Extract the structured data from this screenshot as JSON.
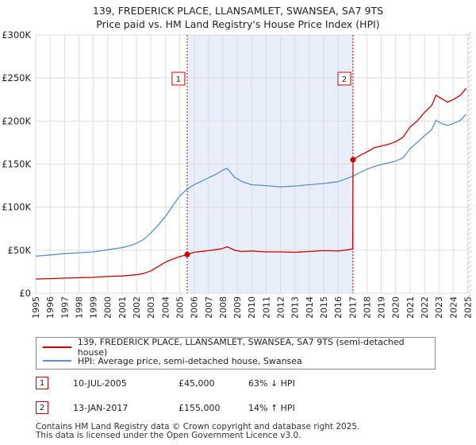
{
  "chart_data": {
    "type": "line",
    "title": "139, FREDERICK PLACE, LLANSAMLET, SWANSEA, SA7 9TS",
    "subtitle": "Price paid vs. HM Land Registry's House Price Index (HPI)",
    "xlim": [
      1995,
      2025.25
    ],
    "ylim": [
      0,
      300000
    ],
    "y_ticks": [
      0,
      50000,
      100000,
      150000,
      200000,
      250000,
      300000
    ],
    "y_tick_labels": [
      "£0",
      "£50K",
      "£100K",
      "£150K",
      "£200K",
      "£250K",
      "£300K"
    ],
    "x_ticks": [
      1995,
      1996,
      1997,
      1998,
      1999,
      2000,
      2001,
      2002,
      2003,
      2004,
      2005,
      2006,
      2007,
      2008,
      2009,
      2010,
      2011,
      2012,
      2013,
      2014,
      2015,
      2016,
      2017,
      2018,
      2019,
      2020,
      2021,
      2022,
      2023,
      2024,
      2025
    ],
    "shaded_span": [
      2005.52,
      2017.04
    ],
    "series": [
      {
        "name": "139, FREDERICK PLACE, LLANSAMLET, SWANSEA, SA7 9TS (semi-detached house)",
        "color": "#cc0000",
        "x": [
          1995.0,
          1996.0,
          1997.0,
          1998.0,
          1999.0,
          2000.0,
          2001.0,
          2002.0,
          2002.5,
          2003.0,
          2003.5,
          2004.0,
          2004.5,
          2005.0,
          2005.52,
          2006.0,
          2007.0,
          2007.9,
          2008.3,
          2008.8,
          2009.3,
          2010.0,
          2011.0,
          2012.0,
          2013.0,
          2014.0,
          2015.0,
          2016.0,
          2016.7,
          2017.02,
          2017.04,
          2017.5,
          2018.0,
          2018.5,
          2019.0,
          2019.5,
          2020.0,
          2020.5,
          2021.0,
          2021.5,
          2022.0,
          2022.5,
          2022.8,
          2023.2,
          2023.6,
          2024.0,
          2024.5,
          2024.9
        ],
        "y": [
          16500,
          17000,
          17500,
          18000,
          18500,
          19500,
          20000,
          21500,
          23000,
          26000,
          31000,
          36000,
          39500,
          42500,
          45000,
          47500,
          49500,
          51500,
          54000,
          50000,
          48500,
          49000,
          48000,
          48000,
          47500,
          48500,
          49500,
          49000,
          50500,
          51500,
          155000,
          160000,
          164000,
          169000,
          171000,
          173000,
          176000,
          181000,
          193000,
          200000,
          210000,
          218000,
          230000,
          226000,
          222000,
          225000,
          230000,
          238000
        ]
      },
      {
        "name": "HPI: Average price, semi-detached house, Swansea",
        "color": "#5a8fd0",
        "x": [
          1995.0,
          1996.0,
          1997.0,
          1998.0,
          1999.0,
          2000.0,
          2001.0,
          2001.5,
          2002.0,
          2002.5,
          2003.0,
          2003.5,
          2004.0,
          2004.5,
          2005.0,
          2005.52,
          2006.0,
          2006.5,
          2007.0,
          2007.5,
          2008.0,
          2008.3,
          2008.8,
          2009.3,
          2010.0,
          2011.0,
          2012.0,
          2013.0,
          2014.0,
          2015.0,
          2016.0,
          2017.04,
          2017.5,
          2018.0,
          2018.5,
          2019.0,
          2019.5,
          2020.0,
          2020.5,
          2021.0,
          2021.5,
          2022.0,
          2022.5,
          2022.8,
          2023.2,
          2023.6,
          2024.0,
          2024.5,
          2024.9
        ],
        "y": [
          43000,
          44500,
          46000,
          47000,
          48000,
          50500,
          53000,
          55000,
          58000,
          62500,
          70000,
          79000,
          89000,
          101000,
          113000,
          121000,
          126000,
          130000,
          134000,
          138000,
          143000,
          145000,
          135000,
          130000,
          126000,
          125000,
          123500,
          124500,
          126000,
          127500,
          129500,
          136000,
          140000,
          144000,
          147000,
          149500,
          151500,
          153500,
          157000,
          168000,
          175000,
          183000,
          190000,
          201000,
          197000,
          195000,
          197000,
          201000,
          208000
        ]
      }
    ],
    "sales": [
      {
        "num": "1",
        "x": 2005.52,
        "y": 45000
      },
      {
        "num": "2",
        "x": 2017.04,
        "y": 155000
      }
    ]
  },
  "legend": {
    "red_label": "139, FREDERICK PLACE, LLANSAMLET, SWANSEA, SA7 9TS (semi-detached house)",
    "blue_label": "HPI: Average price, semi-detached house, Swansea"
  },
  "sales_table": [
    {
      "num": "1",
      "date": "10-JUL-2005",
      "price": "£45,000",
      "hpi": "63% ↓ HPI"
    },
    {
      "num": "2",
      "date": "13-JAN-2017",
      "price": "£155,000",
      "hpi": "14% ↑ HPI"
    }
  ],
  "footer": {
    "line1": "Contains HM Land Registry data © Crown copyright and database right 2025.",
    "line2": "This data is licensed under the Open Government Licence v3.0."
  },
  "colors": {
    "red": "#cc0000",
    "blue": "#5a8fd0",
    "shade": "#e8eefa",
    "grid": "#dddddd"
  }
}
